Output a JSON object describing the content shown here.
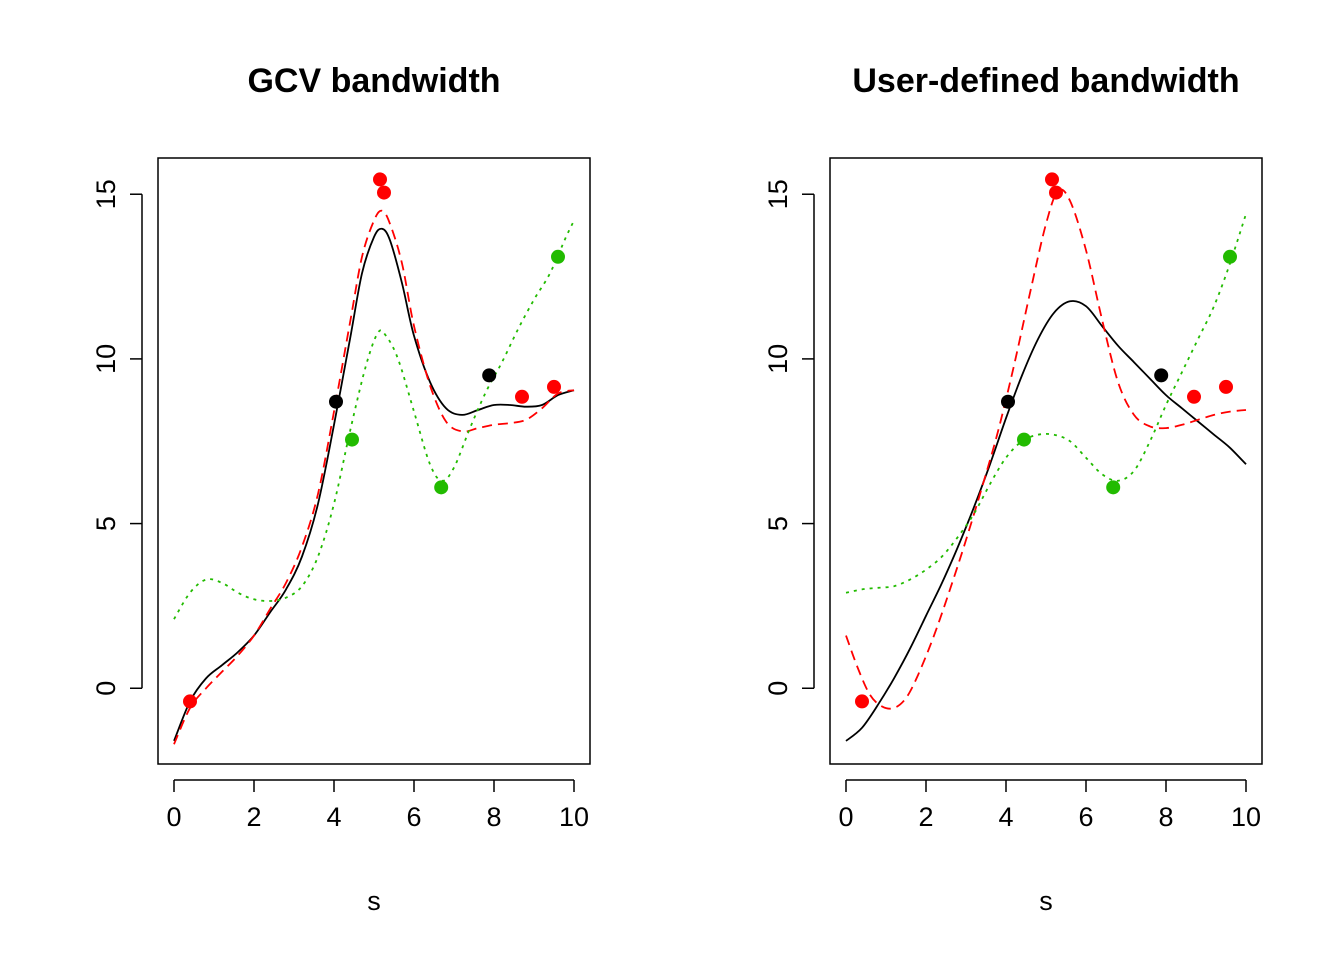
{
  "chart_data": [
    {
      "type": "line",
      "title": "GCV bandwidth",
      "xlabel": "s",
      "ylabel": "",
      "xlim": [
        -0.4,
        10.4
      ],
      "ylim": [
        -2.3,
        16.1
      ],
      "xticks": [
        0,
        2,
        4,
        6,
        8,
        10
      ],
      "yticks": [
        0,
        5,
        10,
        15
      ],
      "series": [
        {
          "color": "#000000",
          "style": "solid",
          "points": [
            [
              0,
              -1.6
            ],
            [
              0.4,
              -0.4
            ],
            [
              0.8,
              0.3
            ],
            [
              1.2,
              0.7
            ],
            [
              1.6,
              1.1
            ],
            [
              2,
              1.6
            ],
            [
              2.4,
              2.3
            ],
            [
              2.8,
              3.0
            ],
            [
              3.2,
              4.0
            ],
            [
              3.6,
              5.6
            ],
            [
              4.0,
              8.0
            ],
            [
              4.4,
              10.6
            ],
            [
              4.7,
              12.6
            ],
            [
              5.0,
              13.7
            ],
            [
              5.2,
              13.95
            ],
            [
              5.4,
              13.6
            ],
            [
              5.7,
              12.3
            ],
            [
              6.0,
              10.7
            ],
            [
              6.4,
              9.3
            ],
            [
              6.8,
              8.5
            ],
            [
              7.2,
              8.3
            ],
            [
              7.6,
              8.45
            ],
            [
              8.0,
              8.6
            ],
            [
              8.4,
              8.6
            ],
            [
              8.8,
              8.55
            ],
            [
              9.2,
              8.6
            ],
            [
              9.6,
              8.9
            ],
            [
              10,
              9.05
            ]
          ]
        },
        {
          "color": "#ff0000",
          "style": "dashed",
          "points": [
            [
              0,
              -1.7
            ],
            [
              0.4,
              -0.6
            ],
            [
              0.8,
              0.0
            ],
            [
              1.2,
              0.5
            ],
            [
              1.6,
              1.0
            ],
            [
              2,
              1.6
            ],
            [
              2.4,
              2.4
            ],
            [
              2.8,
              3.2
            ],
            [
              3.2,
              4.3
            ],
            [
              3.6,
              5.9
            ],
            [
              4.0,
              8.4
            ],
            [
              4.4,
              11.1
            ],
            [
              4.7,
              13.1
            ],
            [
              5.0,
              14.2
            ],
            [
              5.2,
              14.5
            ],
            [
              5.4,
              14.1
            ],
            [
              5.7,
              12.9
            ],
            [
              6.0,
              11.0
            ],
            [
              6.4,
              9.2
            ],
            [
              6.8,
              8.1
            ],
            [
              7.2,
              7.8
            ],
            [
              7.6,
              7.9
            ],
            [
              8.0,
              8.0
            ],
            [
              8.4,
              8.05
            ],
            [
              8.8,
              8.15
            ],
            [
              9.2,
              8.5
            ],
            [
              9.6,
              8.95
            ],
            [
              10,
              9.05
            ]
          ]
        },
        {
          "color": "#22bb00",
          "style": "dotted",
          "points": [
            [
              0,
              2.1
            ],
            [
              0.4,
              2.9
            ],
            [
              0.8,
              3.3
            ],
            [
              1.2,
              3.2
            ],
            [
              1.6,
              2.9
            ],
            [
              2,
              2.7
            ],
            [
              2.4,
              2.65
            ],
            [
              2.8,
              2.75
            ],
            [
              3.2,
              3.1
            ],
            [
              3.6,
              4.0
            ],
            [
              4.0,
              5.6
            ],
            [
              4.4,
              7.8
            ],
            [
              4.8,
              9.8
            ],
            [
              5.1,
              10.8
            ],
            [
              5.3,
              10.7
            ],
            [
              5.6,
              10.0
            ],
            [
              6.0,
              8.4
            ],
            [
              6.4,
              6.8
            ],
            [
              6.7,
              6.3
            ],
            [
              7.0,
              6.7
            ],
            [
              7.4,
              7.9
            ],
            [
              7.8,
              9.0
            ],
            [
              8.2,
              9.9
            ],
            [
              8.6,
              10.9
            ],
            [
              9.0,
              11.8
            ],
            [
              9.4,
              12.6
            ],
            [
              9.8,
              13.7
            ],
            [
              10,
              14.2
            ]
          ]
        }
      ],
      "points": [
        {
          "x": 0.4,
          "y": -0.4,
          "color": "#ff0000"
        },
        {
          "x": 4.05,
          "y": 8.7,
          "color": "#000000"
        },
        {
          "x": 4.45,
          "y": 7.55,
          "color": "#22bb00"
        },
        {
          "x": 5.15,
          "y": 15.45,
          "color": "#ff0000"
        },
        {
          "x": 5.25,
          "y": 15.05,
          "color": "#ff0000"
        },
        {
          "x": 6.68,
          "y": 6.1,
          "color": "#22bb00"
        },
        {
          "x": 7.88,
          "y": 9.5,
          "color": "#000000"
        },
        {
          "x": 8.7,
          "y": 8.85,
          "color": "#ff0000"
        },
        {
          "x": 9.5,
          "y": 9.15,
          "color": "#ff0000"
        },
        {
          "x": 9.6,
          "y": 13.1,
          "color": "#22bb00"
        }
      ]
    },
    {
      "type": "line",
      "title": "User-defined bandwidth",
      "xlabel": "s",
      "ylabel": "",
      "xlim": [
        -0.4,
        10.4
      ],
      "ylim": [
        -2.3,
        16.1
      ],
      "xticks": [
        0,
        2,
        4,
        6,
        8,
        10
      ],
      "yticks": [
        0,
        5,
        10,
        15
      ],
      "series": [
        {
          "color": "#000000",
          "style": "solid",
          "points": [
            [
              0,
              -1.6
            ],
            [
              0.4,
              -1.2
            ],
            [
              0.8,
              -0.5
            ],
            [
              1.2,
              0.3
            ],
            [
              1.6,
              1.2
            ],
            [
              2,
              2.2
            ],
            [
              2.4,
              3.2
            ],
            [
              2.8,
              4.3
            ],
            [
              3.2,
              5.5
            ],
            [
              3.6,
              6.8
            ],
            [
              4.0,
              8.2
            ],
            [
              4.4,
              9.5
            ],
            [
              4.8,
              10.6
            ],
            [
              5.2,
              11.4
            ],
            [
              5.6,
              11.75
            ],
            [
              6.0,
              11.6
            ],
            [
              6.4,
              11.0
            ],
            [
              6.8,
              10.4
            ],
            [
              7.2,
              9.9
            ],
            [
              7.6,
              9.4
            ],
            [
              8.0,
              8.9
            ],
            [
              8.4,
              8.5
            ],
            [
              8.8,
              8.1
            ],
            [
              9.2,
              7.7
            ],
            [
              9.6,
              7.3
            ],
            [
              10,
              6.8
            ]
          ]
        },
        {
          "color": "#ff0000",
          "style": "dashed",
          "points": [
            [
              0,
              1.6
            ],
            [
              0.3,
              0.6
            ],
            [
              0.6,
              -0.2
            ],
            [
              0.9,
              -0.55
            ],
            [
              1.2,
              -0.6
            ],
            [
              1.5,
              -0.3
            ],
            [
              1.8,
              0.4
            ],
            [
              2.2,
              1.6
            ],
            [
              2.6,
              3.0
            ],
            [
              3.0,
              4.5
            ],
            [
              3.4,
              6.1
            ],
            [
              3.8,
              7.8
            ],
            [
              4.2,
              9.8
            ],
            [
              4.6,
              12.0
            ],
            [
              5.0,
              14.1
            ],
            [
              5.3,
              15.1
            ],
            [
              5.6,
              14.8
            ],
            [
              6.0,
              13.3
            ],
            [
              6.4,
              11.2
            ],
            [
              6.8,
              9.3
            ],
            [
              7.2,
              8.3
            ],
            [
              7.6,
              7.95
            ],
            [
              8.0,
              7.9
            ],
            [
              8.4,
              8.0
            ],
            [
              8.8,
              8.15
            ],
            [
              9.2,
              8.3
            ],
            [
              9.6,
              8.4
            ],
            [
              10,
              8.45
            ]
          ]
        },
        {
          "color": "#22bb00",
          "style": "dotted",
          "points": [
            [
              0,
              2.9
            ],
            [
              0.4,
              3.0
            ],
            [
              0.8,
              3.05
            ],
            [
              1.2,
              3.1
            ],
            [
              1.6,
              3.3
            ],
            [
              2,
              3.6
            ],
            [
              2.4,
              4.0
            ],
            [
              2.8,
              4.6
            ],
            [
              3.2,
              5.3
            ],
            [
              3.6,
              6.2
            ],
            [
              4.0,
              7.0
            ],
            [
              4.4,
              7.5
            ],
            [
              4.8,
              7.7
            ],
            [
              5.2,
              7.7
            ],
            [
              5.6,
              7.5
            ],
            [
              6.0,
              7.0
            ],
            [
              6.4,
              6.5
            ],
            [
              6.8,
              6.3
            ],
            [
              7.2,
              6.6
            ],
            [
              7.6,
              7.5
            ],
            [
              8.0,
              8.6
            ],
            [
              8.4,
              9.6
            ],
            [
              8.8,
              10.6
            ],
            [
              9.2,
              11.6
            ],
            [
              9.6,
              12.9
            ],
            [
              10,
              14.4
            ]
          ]
        }
      ],
      "points": [
        {
          "x": 0.4,
          "y": -0.4,
          "color": "#ff0000"
        },
        {
          "x": 4.05,
          "y": 8.7,
          "color": "#000000"
        },
        {
          "x": 4.45,
          "y": 7.55,
          "color": "#22bb00"
        },
        {
          "x": 5.15,
          "y": 15.45,
          "color": "#ff0000"
        },
        {
          "x": 5.25,
          "y": 15.05,
          "color": "#ff0000"
        },
        {
          "x": 6.68,
          "y": 6.1,
          "color": "#22bb00"
        },
        {
          "x": 7.88,
          "y": 9.5,
          "color": "#000000"
        },
        {
          "x": 8.7,
          "y": 8.85,
          "color": "#ff0000"
        },
        {
          "x": 9.5,
          "y": 9.15,
          "color": "#ff0000"
        },
        {
          "x": 9.6,
          "y": 13.1,
          "color": "#22bb00"
        }
      ]
    }
  ]
}
